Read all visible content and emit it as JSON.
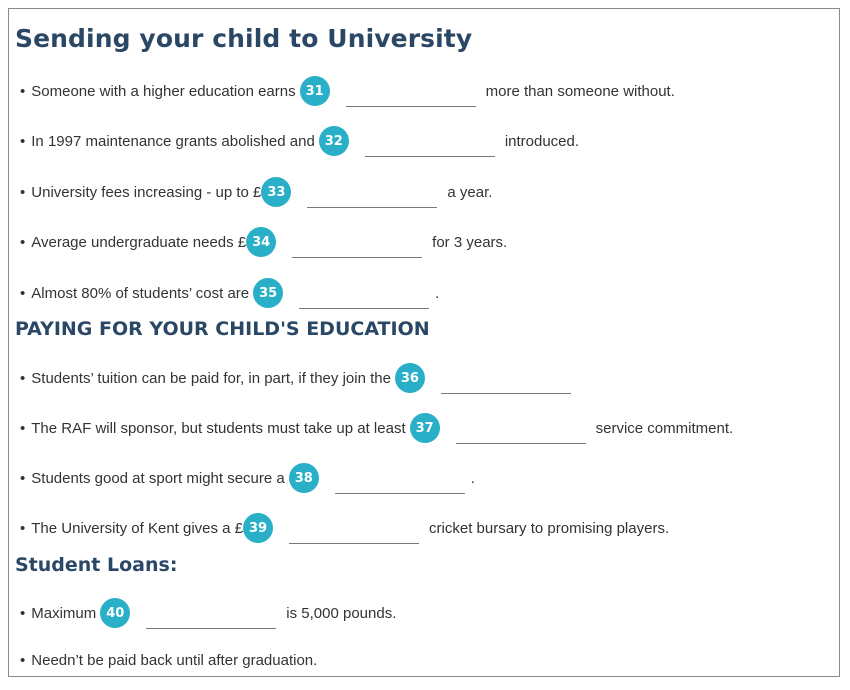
{
  "title": "Sending your child to University",
  "section_paying": "PAYING FOR YOUR CHILD'S EDUCATION",
  "section_loans": "Student Loans:",
  "bullet": "•",
  "items": [
    {
      "before": "Someone with a higher education earns",
      "number": "31",
      "after": "more than someone without.",
      "answer": ""
    },
    {
      "before": "In 1997 maintenance grants abolished and",
      "number": "32",
      "after": "introduced.",
      "answer": ""
    },
    {
      "before": "University fees increasing - up to £",
      "number": "33",
      "after": "a year.",
      "answer": ""
    },
    {
      "before": "Average undergraduate needs £",
      "number": "34",
      "after": "for 3 years.",
      "answer": ""
    },
    {
      "before": "Almost 80% of students’ cost are",
      "number": "35",
      "after": ".",
      "answer": ""
    },
    {
      "before": "Students’ tuition can be paid for, in part, if they join the",
      "number": "36",
      "after": "",
      "answer": ""
    },
    {
      "before": "The RAF will sponsor, but students must take up at least",
      "number": "37",
      "after": "service commitment.",
      "answer": ""
    },
    {
      "before": "Students good at sport might secure a",
      "number": "38",
      "after": ".",
      "answer": ""
    },
    {
      "before": "The University of Kent gives a £",
      "number": "39",
      "after": "cricket bursary to promising players.",
      "answer": ""
    },
    {
      "before": "Maximum",
      "number": "40",
      "after": "is 5,000 pounds.",
      "answer": ""
    },
    {
      "before": "Needn’t be paid back until after graduation."
    }
  ]
}
